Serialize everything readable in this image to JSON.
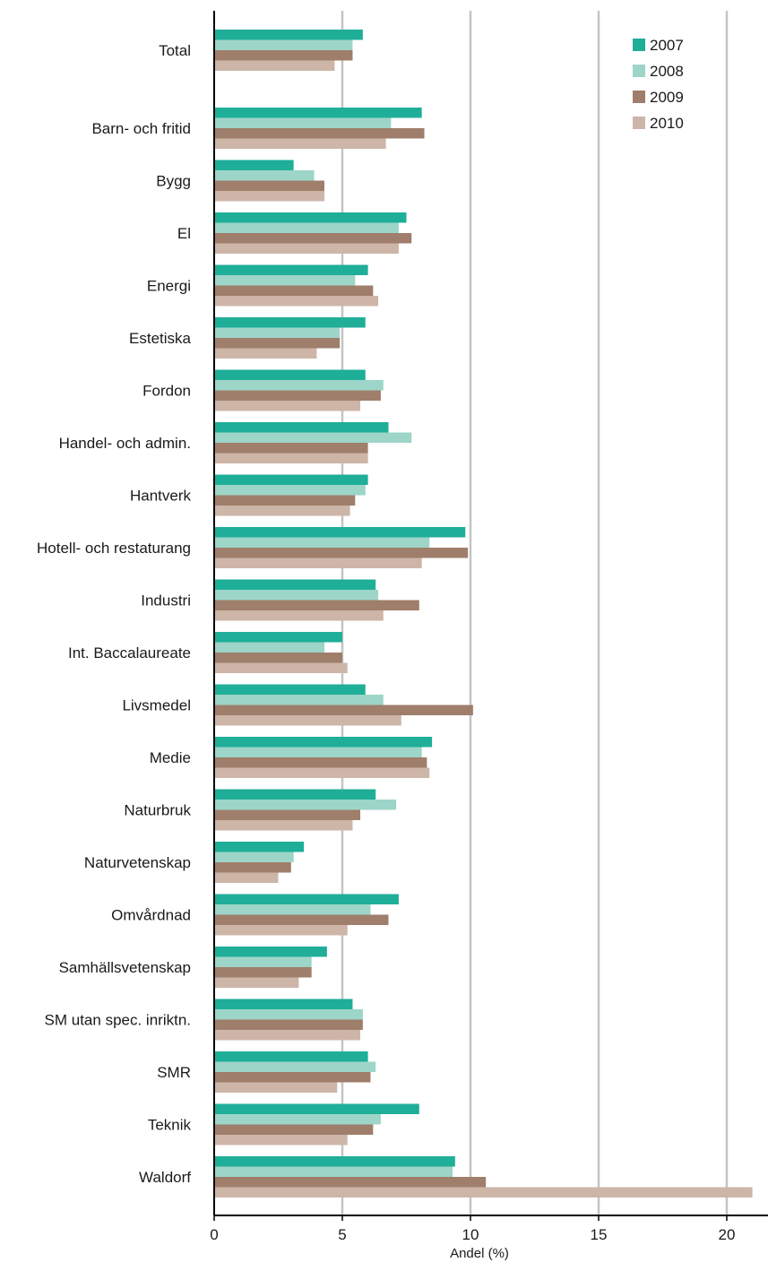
{
  "chart_data": {
    "type": "bar",
    "orientation": "horizontal",
    "title": "",
    "xlabel": "Andel (%)",
    "ylabel": "",
    "xlim": [
      0,
      21.6
    ],
    "xticks": [
      0,
      5,
      10,
      15,
      20
    ],
    "grid": true,
    "legend_position": "top-right",
    "categories": [
      "Total",
      "Barn- och fritid",
      "Bygg",
      "El",
      "Energi",
      "Estetiska",
      "Fordon",
      "Handel- och admin.",
      "Hantverk",
      "Hotell- och restaturang",
      "Industri",
      "Int. Baccalaureate",
      "Livsmedel",
      "Medie",
      "Naturbruk",
      "Naturvetenskap",
      "Omvårdnad",
      "Samhällsvetenskap",
      "SM utan spec. inriktn.",
      "SMR",
      "Teknik",
      "Waldorf"
    ],
    "series": [
      {
        "name": "2007",
        "color": "#1fae98",
        "values": [
          5.8,
          8.1,
          3.1,
          7.5,
          6.0,
          5.9,
          5.9,
          6.8,
          6.0,
          9.8,
          6.3,
          5.0,
          5.9,
          8.5,
          6.3,
          3.5,
          7.2,
          4.4,
          5.4,
          6.0,
          8.0,
          9.4
        ]
      },
      {
        "name": "2008",
        "color": "#9dd5c8",
        "values": [
          5.4,
          6.9,
          3.9,
          7.2,
          5.5,
          4.9,
          6.6,
          7.7,
          5.9,
          8.4,
          6.4,
          4.3,
          6.6,
          8.1,
          7.1,
          3.1,
          6.1,
          3.8,
          5.8,
          6.3,
          6.5,
          9.3
        ]
      },
      {
        "name": "2009",
        "color": "#9f7e6b",
        "values": [
          5.4,
          8.2,
          4.3,
          7.7,
          6.2,
          4.9,
          6.5,
          6.0,
          5.5,
          9.9,
          8.0,
          5.0,
          10.1,
          8.3,
          5.7,
          3.0,
          6.8,
          3.8,
          5.8,
          6.1,
          6.2,
          10.6
        ]
      },
      {
        "name": "2010",
        "color": "#cdb5a8",
        "values": [
          4.7,
          6.7,
          4.3,
          7.2,
          6.4,
          4.0,
          5.7,
          6.0,
          5.3,
          8.1,
          6.6,
          5.2,
          7.3,
          8.4,
          5.4,
          2.5,
          5.2,
          3.3,
          5.7,
          4.8,
          5.2,
          21.0
        ]
      }
    ]
  }
}
